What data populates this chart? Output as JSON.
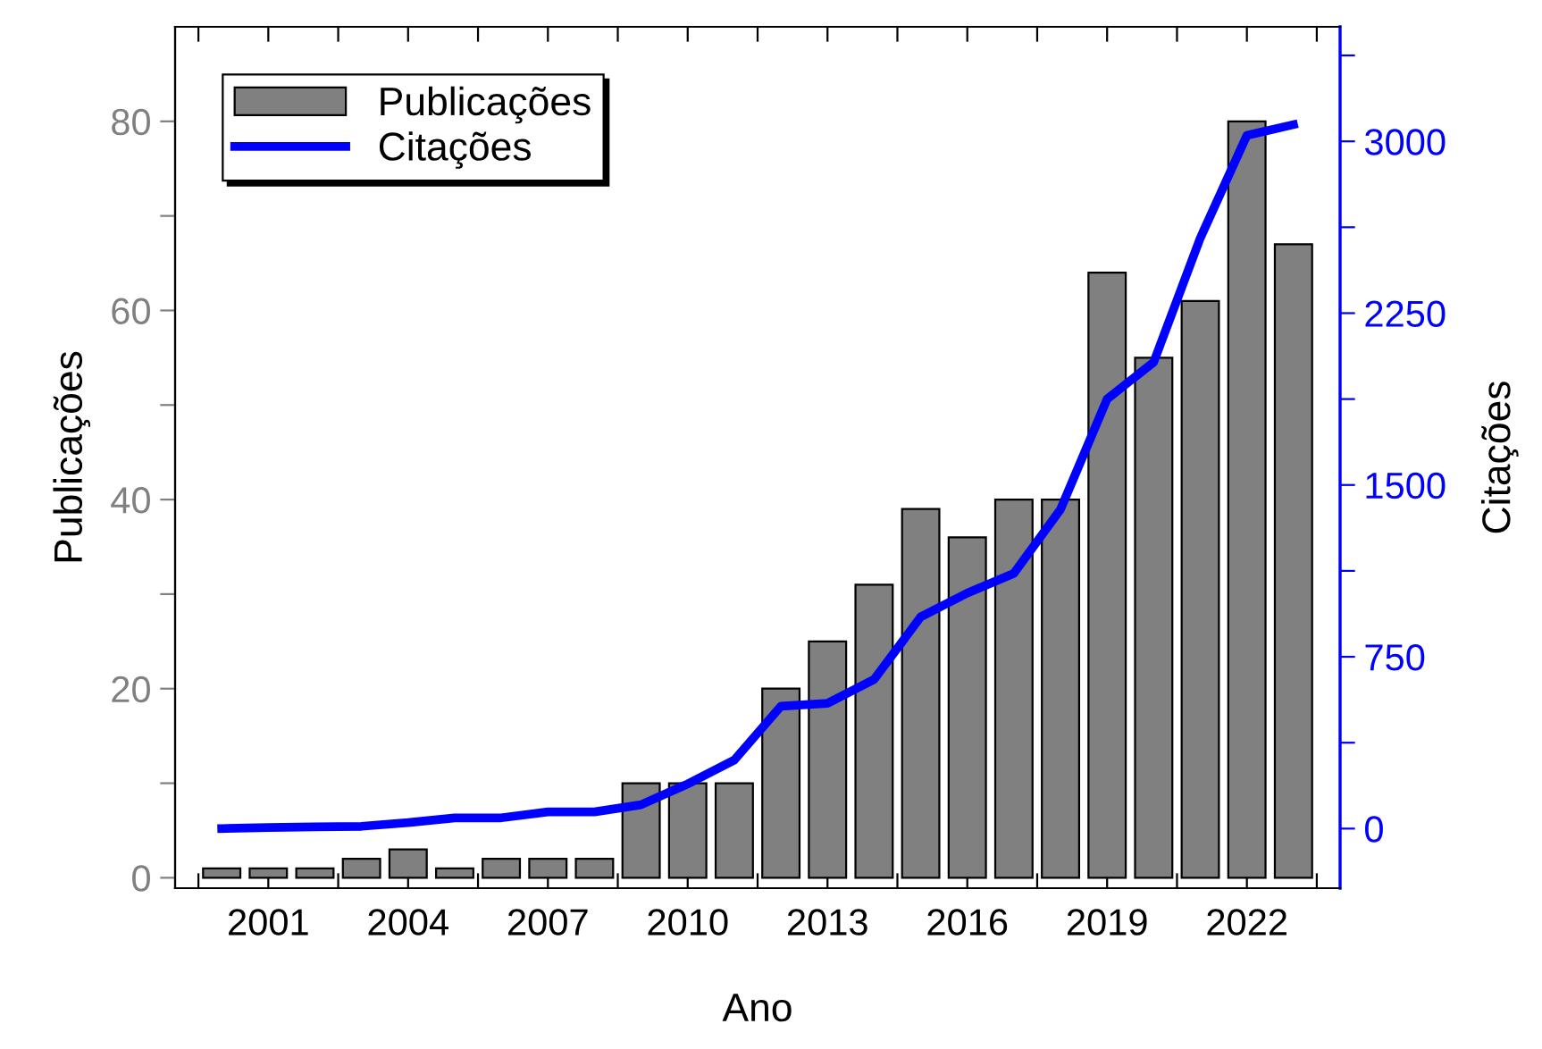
{
  "chart_data": {
    "type": "bar",
    "xlabel": "Ano",
    "ylabel": "Publicações",
    "y2label": "Citações",
    "x": [
      2000,
      2001,
      2002,
      2003,
      2004,
      2005,
      2006,
      2007,
      2008,
      2009,
      2010,
      2011,
      2012,
      2013,
      2014,
      2015,
      2016,
      2017,
      2018,
      2019,
      2020,
      2021,
      2022,
      2023
    ],
    "series": [
      {
        "name": "Publicações",
        "color": "#808080",
        "values": [
          1,
          1,
          1,
          2,
          3,
          1,
          2,
          2,
          2,
          10,
          10,
          10,
          20,
          25,
          31,
          39,
          36,
          40,
          40,
          64,
          55,
          61,
          80,
          67
        ]
      },
      {
        "name": "Citações",
        "type": "line",
        "axis": "y2",
        "color": "#0000ff",
        "values": [
          0,
          5,
          8,
          10,
          26,
          47,
          47,
          73,
          73,
          104,
          195,
          299,
          534,
          547,
          651,
          924,
          1028,
          1114,
          1393,
          1875,
          2036,
          2578,
          3026,
          3073
        ]
      }
    ],
    "xlim": [
      1999,
      2024
    ],
    "xticks": [
      {
        "value": 1999.5,
        "label": null
      },
      2001,
      {
        "value": 2002.5,
        "label": null
      },
      2004,
      {
        "value": 2005.5,
        "label": null
      },
      2007,
      {
        "value": 2008.5,
        "label": null
      },
      2010,
      {
        "value": 2011.5,
        "label": null
      },
      2013,
      {
        "value": 2014.5,
        "label": null
      },
      2016,
      {
        "value": 2017.5,
        "label": null
      },
      2019,
      {
        "value": 2020.5,
        "label": null
      },
      2022,
      {
        "value": 2023.5,
        "label": null
      }
    ],
    "ylim": [
      -1.1,
      90
    ],
    "yticks": [
      0,
      {
        "value": 10,
        "label": null
      },
      20,
      {
        "value": 30,
        "label": null
      },
      40,
      {
        "value": 50,
        "label": null
      },
      60,
      {
        "value": 70,
        "label": null
      },
      80
    ],
    "y2lim": [
      -260,
      3500
    ],
    "y2ticks": [
      0,
      {
        "value": 375,
        "label": null
      },
      750,
      {
        "value": 1125,
        "label": null
      },
      1500,
      {
        "value": 1875,
        "label": null
      },
      2250,
      {
        "value": 2625,
        "label": null
      },
      3000,
      {
        "value": 3375,
        "label": null
      }
    ],
    "legend": "top left",
    "grid": false,
    "line_style": "solid",
    "marker": "none"
  }
}
